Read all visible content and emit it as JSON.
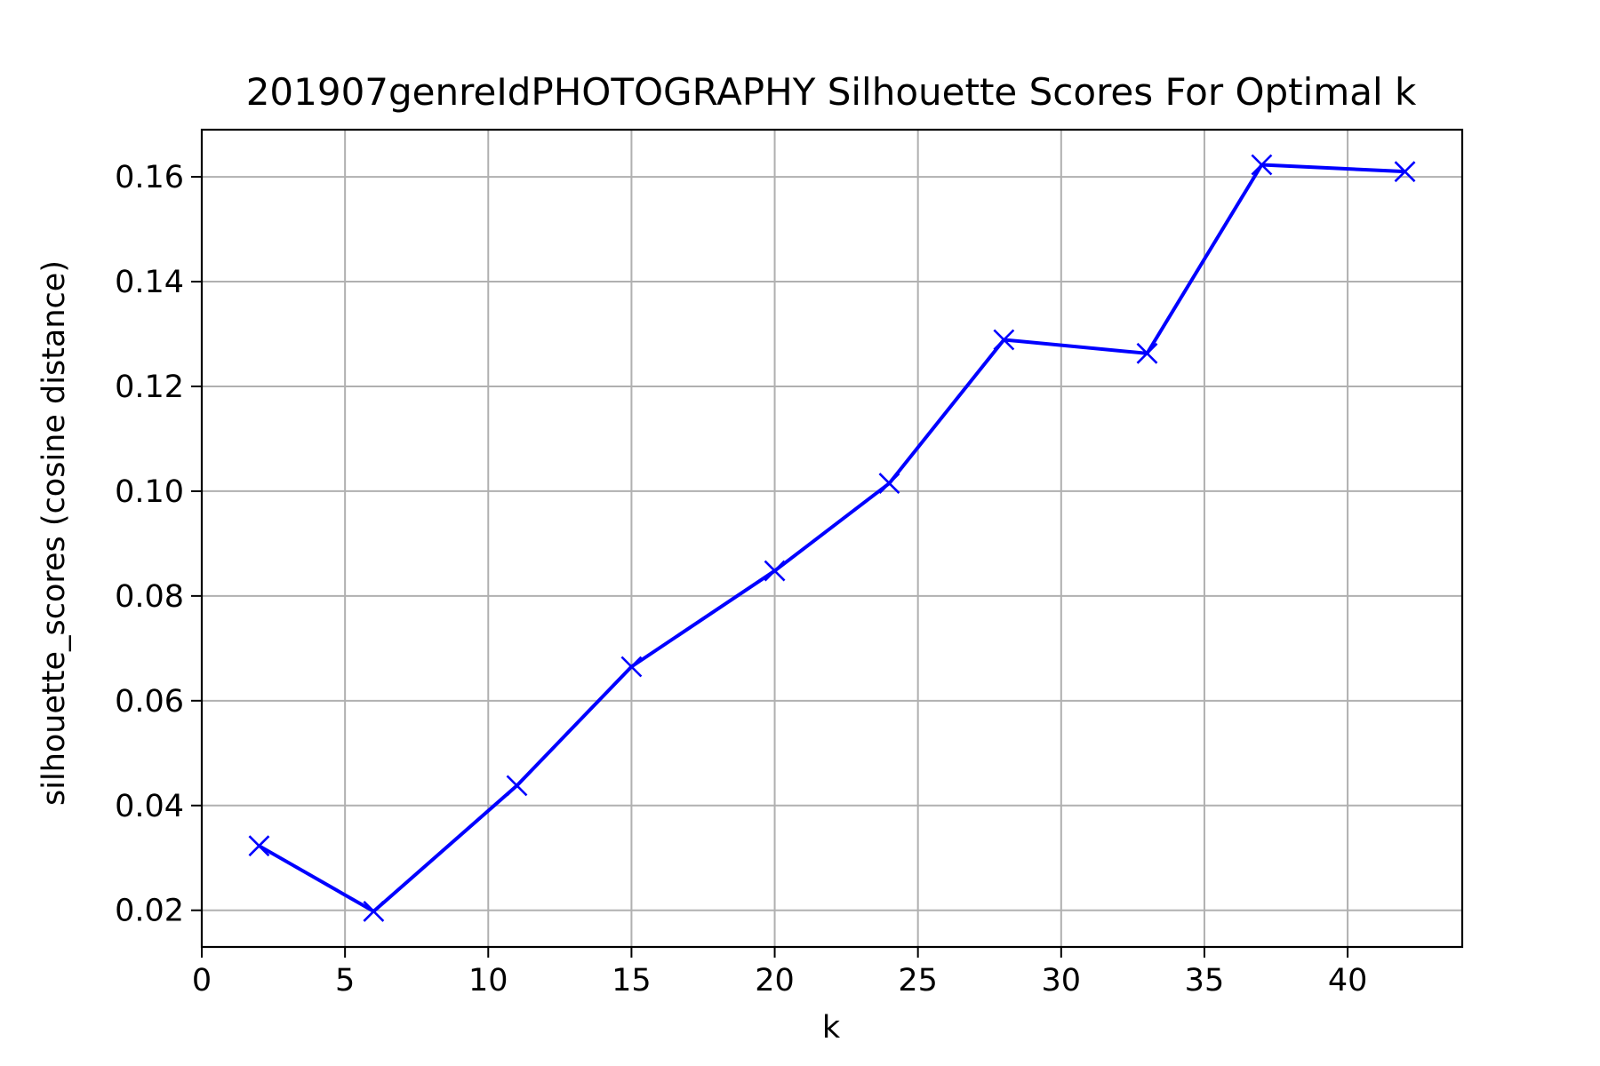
{
  "chart_data": {
    "type": "line",
    "title": "201907genreIdPHOTOGRAPHY Silhouette Scores For Optimal k",
    "xlabel": "k",
    "ylabel": "silhouette_scores (cosine distance)",
    "xlim": [
      0,
      44
    ],
    "ylim": [
      0.013,
      0.169
    ],
    "xticks": [
      0,
      5,
      10,
      15,
      20,
      25,
      30,
      35,
      40
    ],
    "xtick_labels": [
      "0",
      "5",
      "10",
      "15",
      "20",
      "25",
      "30",
      "35",
      "40"
    ],
    "yticks": [
      0.02,
      0.04,
      0.06,
      0.08,
      0.1,
      0.12,
      0.14,
      0.16
    ],
    "ytick_labels": [
      "0.02",
      "0.04",
      "0.06",
      "0.08",
      "0.10",
      "0.12",
      "0.14",
      "0.16"
    ],
    "grid": true,
    "marker": "x",
    "color": "#0000ff",
    "series": [
      {
        "x": [
          2,
          6,
          11,
          15,
          20,
          24,
          28,
          33,
          37,
          42
        ],
        "y": [
          0.0323,
          0.0198,
          0.0438,
          0.0665,
          0.0848,
          0.1015,
          0.1289,
          0.1263,
          0.1623,
          0.161
        ]
      }
    ]
  }
}
